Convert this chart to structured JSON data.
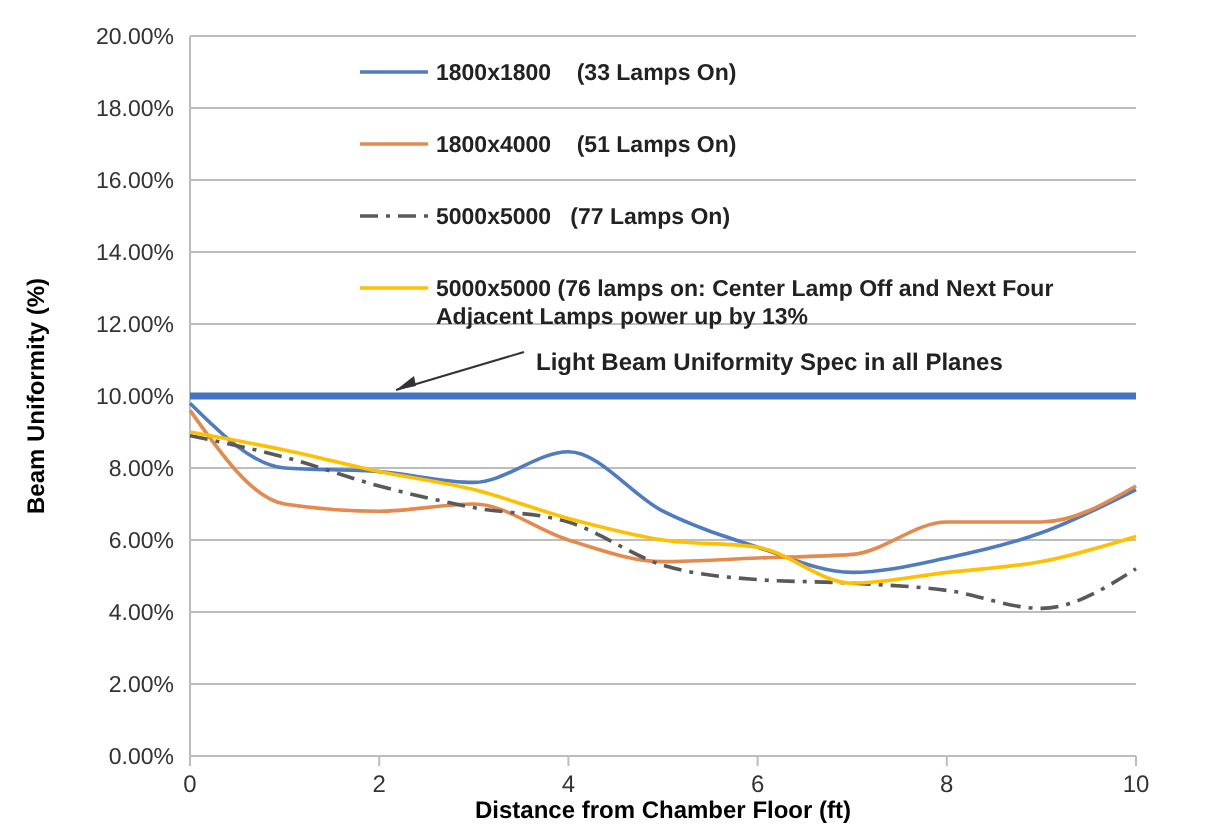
{
  "chart_data": {
    "type": "line",
    "xlabel": "Distance from Chamber Floor (ft)",
    "ylabel": "Beam Uniformity (%)",
    "x": [
      0,
      1,
      2,
      3,
      4,
      5,
      6,
      7,
      8,
      9,
      10
    ],
    "series": [
      {
        "name": "1800x1800    (33 Lamps On)",
        "color": "#4f7bbf",
        "values": [
          9.8,
          8.0,
          7.9,
          7.6,
          8.45,
          6.8,
          5.8,
          5.1,
          5.5,
          6.2,
          7.4
        ]
      },
      {
        "name": "1800x4000    (51 Lamps On)",
        "color": "#e38b4f",
        "values": [
          9.6,
          7.0,
          6.8,
          7.0,
          6.0,
          5.4,
          5.5,
          5.6,
          6.5,
          6.5,
          7.5
        ]
      },
      {
        "name": "5000x5000   (77 Lamps On)",
        "color": "#595959",
        "line_style": "dashed",
        "values": [
          8.9,
          8.3,
          7.5,
          6.9,
          6.5,
          5.3,
          4.9,
          4.8,
          4.6,
          4.1,
          5.2
        ]
      },
      {
        "name": "5000x5000 (76 lamps on: Center Lamp Off and Next Four Adjacent Lamps power up by 13%",
        "color": "#ffc000",
        "values": [
          9.0,
          8.5,
          7.9,
          7.4,
          6.6,
          6.0,
          5.8,
          4.8,
          5.1,
          5.4,
          6.1
        ]
      }
    ],
    "xlim": [
      0,
      10
    ],
    "xticks": [
      0,
      2,
      4,
      6,
      8,
      10
    ],
    "ylim": [
      0,
      20
    ],
    "yticks": [
      {
        "value": 0,
        "label": "0.00%"
      },
      {
        "value": 2,
        "label": "2.00%"
      },
      {
        "value": 4,
        "label": "4.00%"
      },
      {
        "value": 6,
        "label": "6.00%"
      },
      {
        "value": 8,
        "label": "8.00%"
      },
      {
        "value": 10,
        "label": "10.00%"
      },
      {
        "value": 12,
        "label": "12.00%"
      },
      {
        "value": 14,
        "label": "14.00%"
      },
      {
        "value": 16,
        "label": "16.00%"
      },
      {
        "value": 18,
        "label": "18.00%"
      },
      {
        "value": 20,
        "label": "20.00%"
      }
    ],
    "ref_lines": [
      {
        "axis": "y",
        "value": 10,
        "label": "Light Beam Uniformity Spec in all Planes",
        "color": "#4472c4"
      }
    ],
    "grid": "y",
    "legend": "top",
    "marker": "none",
    "line_style": "solid"
  }
}
